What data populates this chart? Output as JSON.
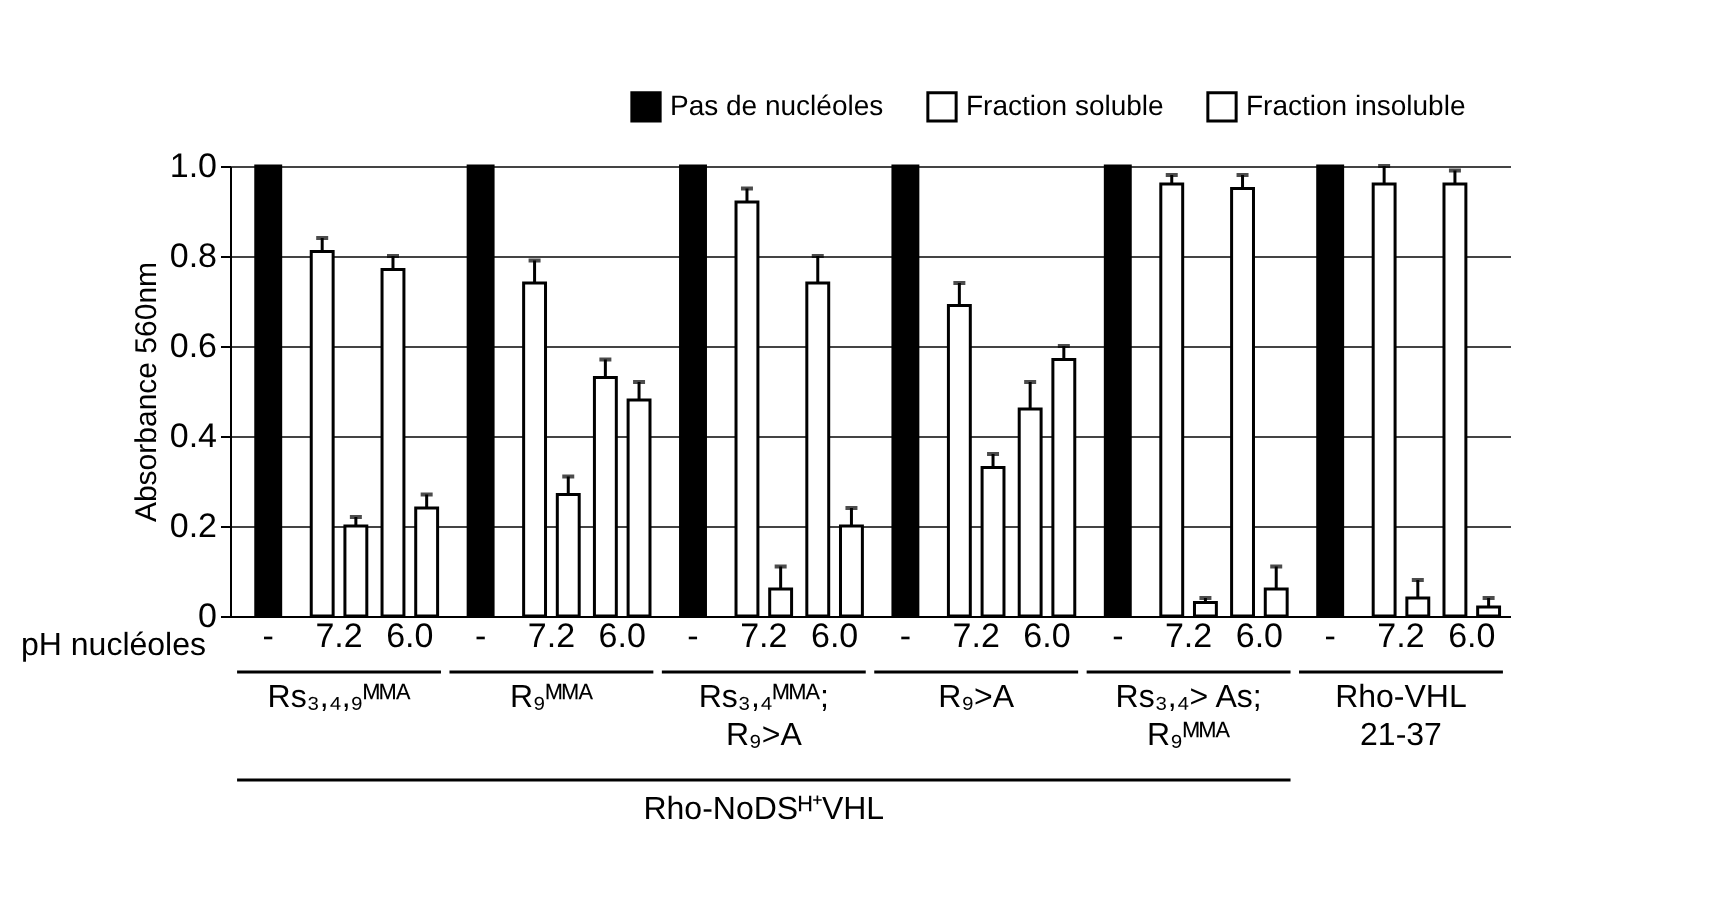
{
  "chart_data": {
    "type": "bar",
    "ylabel": "Absorbance 560nm",
    "categories": [
      "-",
      "7.2",
      "6.0",
      "-",
      "7.2",
      "6.0",
      "-",
      "7.2",
      "6.0",
      "-",
      "7.2",
      "6.0",
      "-",
      "7.2",
      "6.0",
      "-",
      "7.2",
      "6.0"
    ],
    "series": [
      {
        "name": "Pas de nucléoles",
        "color": "#000000",
        "values": [
          1.0,
          null,
          null,
          1.0,
          null,
          null,
          1.0,
          null,
          null,
          1.0,
          null,
          null,
          1.0,
          null,
          null,
          1.0,
          null,
          null
        ]
      },
      {
        "name": "Fraction soluble",
        "color": "#ffffff",
        "values": [
          null,
          0.81,
          0.77,
          null,
          0.74,
          0.53,
          null,
          0.92,
          0.74,
          null,
          0.69,
          0.46,
          null,
          0.96,
          0.95,
          null,
          0.96,
          0.96
        ],
        "errors": [
          null,
          [
            0.81,
            0.84
          ],
          [
            0.77,
            0.8
          ],
          null,
          [
            0.74,
            0.79
          ],
          [
            0.53,
            0.57
          ],
          null,
          [
            0.92,
            0.95
          ],
          [
            0.74,
            0.8
          ],
          null,
          [
            0.69,
            0.74
          ],
          [
            0.46,
            0.52
          ],
          null,
          [
            0.96,
            0.98
          ],
          [
            0.95,
            0.98
          ],
          null,
          [
            0.96,
            1.0
          ],
          [
            0.96,
            0.99
          ]
        ]
      },
      {
        "name": "Fraction insoluble",
        "color": "#ffffff",
        "values": [
          null,
          0.2,
          0.24,
          null,
          0.27,
          0.48,
          null,
          0.06,
          0.2,
          null,
          0.33,
          0.57,
          null,
          0.03,
          0.06,
          null,
          0.04,
          0.02
        ],
        "errors": [
          null,
          [
            0.2,
            0.22
          ],
          [
            0.24,
            0.27
          ],
          null,
          [
            0.27,
            0.31
          ],
          [
            0.48,
            0.52
          ],
          null,
          [
            0.06,
            0.11
          ],
          [
            0.2,
            0.24
          ],
          null,
          [
            0.33,
            0.36
          ],
          [
            0.57,
            0.6
          ],
          null,
          [
            0.03,
            0.04
          ],
          [
            0.06,
            0.11
          ],
          null,
          [
            0.04,
            0.08
          ],
          [
            0.02,
            0.04
          ]
        ]
      }
    ],
    "ylim": [
      0,
      1
    ],
    "yticks": [
      {
        "value": 0,
        "label": "0"
      },
      0.2,
      0.4,
      0.6,
      0.8,
      {
        "value": 1,
        "label": "1.0"
      }
    ],
    "grid": "y",
    "legend": "top right",
    "annotations": [
      "pH nucléoles",
      "Rs₃,₄,₉ᴹᴹᴬ",
      "R₉ᴹᴹᴬ",
      "Rs₃,₄ᴹᴹᴬ;\nR₉>A",
      "R₉>A",
      "Rs₃,₄> As;\nR₉ᴹᴹᴬ",
      "Rho-VHL\n21-37",
      "Rho-NoDSᴴ⁺VHL"
    ]
  }
}
